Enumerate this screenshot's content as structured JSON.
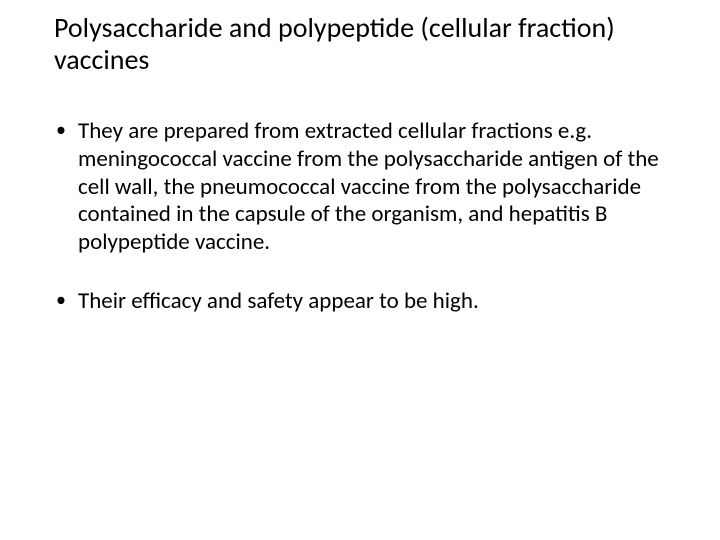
{
  "slide": {
    "background_color": "#ffffff",
    "text_color": "#000000",
    "title_fontsize": 28,
    "body_fontsize": 23,
    "font_family": "Calibri",
    "title": "Polysaccharide and polypeptide (cellular fraction) vaccines",
    "bullets": [
      "They are prepared from extracted cellular fractions e.g. meningococcal vaccine from the polysaccharide antigen of the cell wall, the pneumococcal vaccine from the polysaccharide contained in the capsule of the organism, and hepatitis B polypeptide vaccine.",
      "Their efficacy and safety appear to be high."
    ]
  }
}
